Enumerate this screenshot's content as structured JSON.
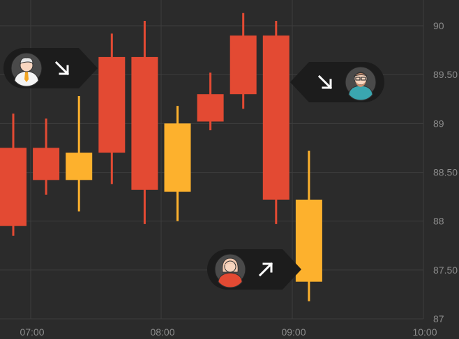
{
  "chart_data": {
    "type": "candlestick",
    "title": "",
    "xlabel": "",
    "ylabel": "",
    "x_ticks": [
      "07:00",
      "08:00",
      "09:00",
      "10:00"
    ],
    "y_ticks": [
      "87",
      "87.50",
      "88",
      "88.50",
      "89",
      "89.50",
      "90"
    ],
    "ylim": [
      87,
      90.15
    ],
    "grid": true,
    "candles": [
      {
        "open": 87.95,
        "high": 89.1,
        "low": 87.85,
        "close": 88.75
      },
      {
        "open": 88.42,
        "high": 89.05,
        "low": 88.27,
        "close": 88.75
      },
      {
        "open": 88.7,
        "high": 89.28,
        "low": 88.1,
        "close": 88.42
      },
      {
        "open": 88.7,
        "high": 89.92,
        "low": 88.38,
        "close": 89.68
      },
      {
        "open": 88.32,
        "high": 90.05,
        "low": 87.97,
        "close": 89.68
      },
      {
        "open": 89.0,
        "high": 89.18,
        "low": 88.0,
        "close": 88.3
      },
      {
        "open": 89.02,
        "high": 89.52,
        "low": 88.93,
        "close": 89.3
      },
      {
        "open": 89.3,
        "high": 90.13,
        "low": 89.15,
        "close": 89.9
      },
      {
        "open": 88.22,
        "high": 90.05,
        "low": 87.97,
        "close": 89.9
      },
      {
        "open": 88.22,
        "high": 88.72,
        "low": 87.18,
        "close": 87.38
      }
    ],
    "colors": {
      "up": "#e34a33",
      "down": "#fdb12d",
      "grid": "#3e3e3e",
      "axis": "#8c8c8c",
      "background": "#2b2b2b"
    },
    "annotations": [
      {
        "avatar": "man-tie-avatar-icon",
        "direction": "down",
        "arrow": "arrow-down-right-icon",
        "pointer": "right"
      },
      {
        "avatar": "man-glasses-beard-avatar-icon",
        "direction": "down",
        "arrow": "arrow-down-right-icon",
        "pointer": "left"
      },
      {
        "avatar": "woman-avatar-icon",
        "direction": "up",
        "arrow": "arrow-up-right-icon",
        "pointer": "right"
      }
    ]
  }
}
